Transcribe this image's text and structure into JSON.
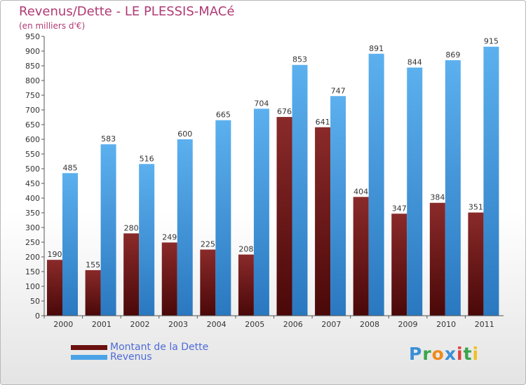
{
  "chart_data": {
    "type": "bar",
    "title": "Revenus/Dette - LE PLESSIS-MACé",
    "subtitle": "(en milliers d'€)",
    "categories": [
      "2000",
      "2001",
      "2002",
      "2003",
      "2004",
      "2005",
      "2006",
      "2007",
      "2008",
      "2009",
      "2010",
      "2011"
    ],
    "series": [
      {
        "name": "Montant de la Dette",
        "color": "#7a1a1a",
        "values": [
          190,
          155,
          280,
          249,
          225,
          208,
          676,
          641,
          404,
          347,
          384,
          351
        ]
      },
      {
        "name": "Revenus",
        "color": "#4aa3e6",
        "values": [
          485,
          583,
          516,
          600,
          665,
          704,
          853,
          747,
          891,
          844,
          869,
          915
        ]
      }
    ],
    "ylim": [
      0,
      950
    ],
    "ytick_step": 50,
    "grid": false,
    "legend_position": "bottom-left"
  },
  "logo": {
    "letters": [
      {
        "ch": "P",
        "color": "#3a8fd8"
      },
      {
        "ch": "r",
        "color": "#3aa54a"
      },
      {
        "ch": "o",
        "color": "#f08a1c"
      },
      {
        "ch": "x",
        "color": "#3a8fd8"
      },
      {
        "ch": "i",
        "color": "#e04040"
      },
      {
        "ch": "t",
        "color": "#3aa54a"
      },
      {
        "ch": "i",
        "color": "#f0c020"
      }
    ]
  }
}
